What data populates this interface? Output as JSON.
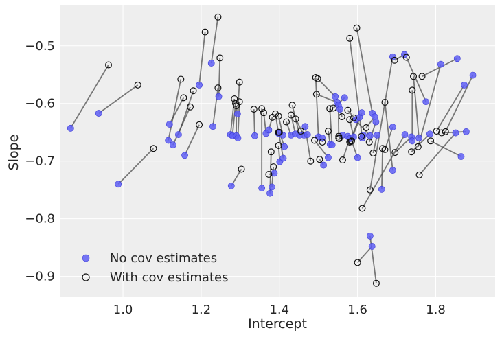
{
  "chart_data": {
    "type": "scatter",
    "title": "",
    "xlabel": "Intercept",
    "ylabel": "Slope",
    "xlim": [
      0.84,
      1.952
    ],
    "ylim": [
      -0.935,
      -0.43
    ],
    "xticks": [
      1.0,
      1.2,
      1.4,
      1.6,
      1.8
    ],
    "xtick_labels": [
      "1.0",
      "1.2",
      "1.4",
      "1.6",
      "1.8"
    ],
    "yticks": [
      -0.5,
      -0.6,
      -0.7,
      -0.8,
      -0.9
    ],
    "ytick_labels": [
      "−0.5",
      "−0.6",
      "−0.7",
      "−0.8",
      "−0.9"
    ],
    "grid": true,
    "legend_position": "lower-left",
    "colors": {
      "background": "#eeeeee",
      "grid": "#ffffff",
      "no_cov_fill": "#5e5ef5",
      "no_cov_edge": "#3b3bd6",
      "with_cov_edge": "#111111",
      "connector": "#444444"
    },
    "series": [
      {
        "name": "No cov estimates",
        "marker": "filled-circle",
        "points": [
          [
            0.866,
            -0.643
          ],
          [
            0.938,
            -0.617
          ],
          [
            0.988,
            -0.74
          ],
          [
            1.116,
            -0.664
          ],
          [
            1.119,
            -0.636
          ],
          [
            1.128,
            -0.672
          ],
          [
            1.142,
            -0.654
          ],
          [
            1.158,
            -0.69
          ],
          [
            1.195,
            -0.568
          ],
          [
            1.226,
            -0.53
          ],
          [
            1.23,
            -0.64
          ],
          [
            1.245,
            -0.588
          ],
          [
            1.275,
            -0.654
          ],
          [
            1.277,
            -0.743
          ],
          [
            1.28,
            -0.656
          ],
          [
            1.29,
            -0.656
          ],
          [
            1.294,
            -0.66
          ],
          [
            1.293,
            -0.618
          ],
          [
            1.337,
            -0.656
          ],
          [
            1.355,
            -0.747
          ],
          [
            1.366,
            -0.652
          ],
          [
            1.373,
            -0.646
          ],
          [
            1.376,
            -0.756
          ],
          [
            1.381,
            -0.745
          ],
          [
            1.387,
            -0.721
          ],
          [
            1.398,
            -0.652
          ],
          [
            1.401,
            -0.701
          ],
          [
            1.409,
            -0.655
          ],
          [
            1.41,
            -0.695
          ],
          [
            1.413,
            -0.675
          ],
          [
            1.43,
            -0.655
          ],
          [
            1.441,
            -0.653
          ],
          [
            1.452,
            -0.655
          ],
          [
            1.463,
            -0.655
          ],
          [
            1.466,
            -0.64
          ],
          [
            1.472,
            -0.654
          ],
          [
            1.5,
            -0.658
          ],
          [
            1.51,
            -0.66
          ],
          [
            1.513,
            -0.707
          ],
          [
            1.525,
            -0.694
          ],
          [
            1.53,
            -0.671
          ],
          [
            1.535,
            -0.672
          ],
          [
            1.543,
            -0.588
          ],
          [
            1.548,
            -0.598
          ],
          [
            1.551,
            -0.603
          ],
          [
            1.555,
            -0.61
          ],
          [
            1.562,
            -0.655
          ],
          [
            1.567,
            -0.59
          ],
          [
            1.575,
            -0.657
          ],
          [
            1.58,
            -0.661
          ],
          [
            1.59,
            -0.658
          ],
          [
            1.596,
            -0.628
          ],
          [
            1.6,
            -0.694
          ],
          [
            1.605,
            -0.624
          ],
          [
            1.611,
            -0.616
          ],
          [
            1.612,
            -0.66
          ],
          [
            1.615,
            -0.655
          ],
          [
            1.632,
            -0.656
          ],
          [
            1.637,
            -0.848
          ],
          [
            1.638,
            -0.617
          ],
          [
            1.644,
            -0.623
          ],
          [
            1.647,
            -0.632
          ],
          [
            1.65,
            -0.655
          ],
          [
            1.632,
            -0.83
          ],
          [
            1.662,
            -0.749
          ],
          [
            1.69,
            -0.716
          ],
          [
            1.69,
            -0.641
          ],
          [
            1.69,
            -0.519
          ],
          [
            1.721,
            -0.654
          ],
          [
            1.72,
            -0.515
          ],
          [
            1.738,
            -0.658
          ],
          [
            1.74,
            -0.665
          ],
          [
            1.757,
            -0.66
          ],
          [
            1.775,
            -0.597
          ],
          [
            1.785,
            -0.653
          ],
          [
            1.813,
            -0.532
          ],
          [
            1.851,
            -0.651
          ],
          [
            1.855,
            -0.522
          ],
          [
            1.865,
            -0.692
          ],
          [
            1.873,
            -0.568
          ],
          [
            1.878,
            -0.649
          ],
          [
            1.895,
            -0.551
          ]
        ]
      },
      {
        "name": "With cov estimates",
        "marker": "open-circle",
        "points": [
          [
            0.963,
            -0.533
          ],
          [
            1.038,
            -0.568
          ],
          [
            1.078,
            -0.678
          ],
          [
            1.148,
            -0.558
          ],
          [
            1.155,
            -0.59
          ],
          [
            1.172,
            -0.606
          ],
          [
            1.18,
            -0.578
          ],
          [
            1.195,
            -0.637
          ],
          [
            1.21,
            -0.476
          ],
          [
            1.243,
            -0.45
          ],
          [
            1.243,
            -0.573
          ],
          [
            1.248,
            -0.521
          ],
          [
            1.285,
            -0.592
          ],
          [
            1.303,
            -0.714
          ],
          [
            1.288,
            -0.6
          ],
          [
            1.29,
            -0.604
          ],
          [
            1.298,
            -0.597
          ],
          [
            1.298,
            -0.563
          ],
          [
            1.335,
            -0.61
          ],
          [
            1.355,
            -0.609
          ],
          [
            1.36,
            -0.616
          ],
          [
            1.382,
            -0.624
          ],
          [
            1.379,
            -0.684
          ],
          [
            1.385,
            -0.71
          ],
          [
            1.373,
            -0.723
          ],
          [
            1.39,
            -0.618
          ],
          [
            1.398,
            -0.673
          ],
          [
            1.398,
            -0.622
          ],
          [
            1.398,
            -0.65
          ],
          [
            1.4,
            -0.65
          ],
          [
            1.418,
            -0.632
          ],
          [
            1.43,
            -0.62
          ],
          [
            1.433,
            -0.603
          ],
          [
            1.442,
            -0.627
          ],
          [
            1.48,
            -0.7
          ],
          [
            1.455,
            -0.648
          ],
          [
            1.493,
            -0.555
          ],
          [
            1.51,
            -0.667
          ],
          [
            1.503,
            -0.697
          ],
          [
            1.49,
            -0.664
          ],
          [
            1.525,
            -0.648
          ],
          [
            1.529,
            -0.609
          ],
          [
            1.498,
            -0.557
          ],
          [
            1.495,
            -0.584
          ],
          [
            1.552,
            -0.657
          ],
          [
            1.56,
            -0.623
          ],
          [
            1.552,
            -0.66
          ],
          [
            1.538,
            -0.608
          ],
          [
            1.553,
            -0.661
          ],
          [
            1.562,
            -0.698
          ],
          [
            1.58,
            -0.628
          ],
          [
            1.575,
            -0.612
          ],
          [
            1.585,
            -0.665
          ],
          [
            1.58,
            -0.667
          ],
          [
            1.583,
            -0.666
          ],
          [
            1.58,
            -0.487
          ],
          [
            1.61,
            -0.657
          ],
          [
            1.59,
            -0.625
          ],
          [
            1.6,
            -0.876
          ],
          [
            1.598,
            -0.469
          ],
          [
            1.622,
            -0.642
          ],
          [
            1.63,
            -0.667
          ],
          [
            1.64,
            -0.686
          ],
          [
            1.648,
            -0.912
          ],
          [
            1.664,
            -0.678
          ],
          [
            1.67,
            -0.598
          ],
          [
            1.67,
            -0.68
          ],
          [
            1.632,
            -0.75
          ],
          [
            1.612,
            -0.782
          ],
          [
            1.695,
            -0.525
          ],
          [
            1.696,
            -0.685
          ],
          [
            1.74,
            -0.577
          ],
          [
            1.743,
            -0.553
          ],
          [
            1.725,
            -0.52
          ],
          [
            1.738,
            -0.684
          ],
          [
            1.755,
            -0.675
          ],
          [
            1.758,
            -0.724
          ],
          [
            1.765,
            -0.553
          ],
          [
            1.787,
            -0.665
          ],
          [
            1.802,
            -0.648
          ],
          [
            1.815,
            -0.651
          ],
          [
            1.825,
            -0.649
          ]
        ]
      }
    ]
  }
}
